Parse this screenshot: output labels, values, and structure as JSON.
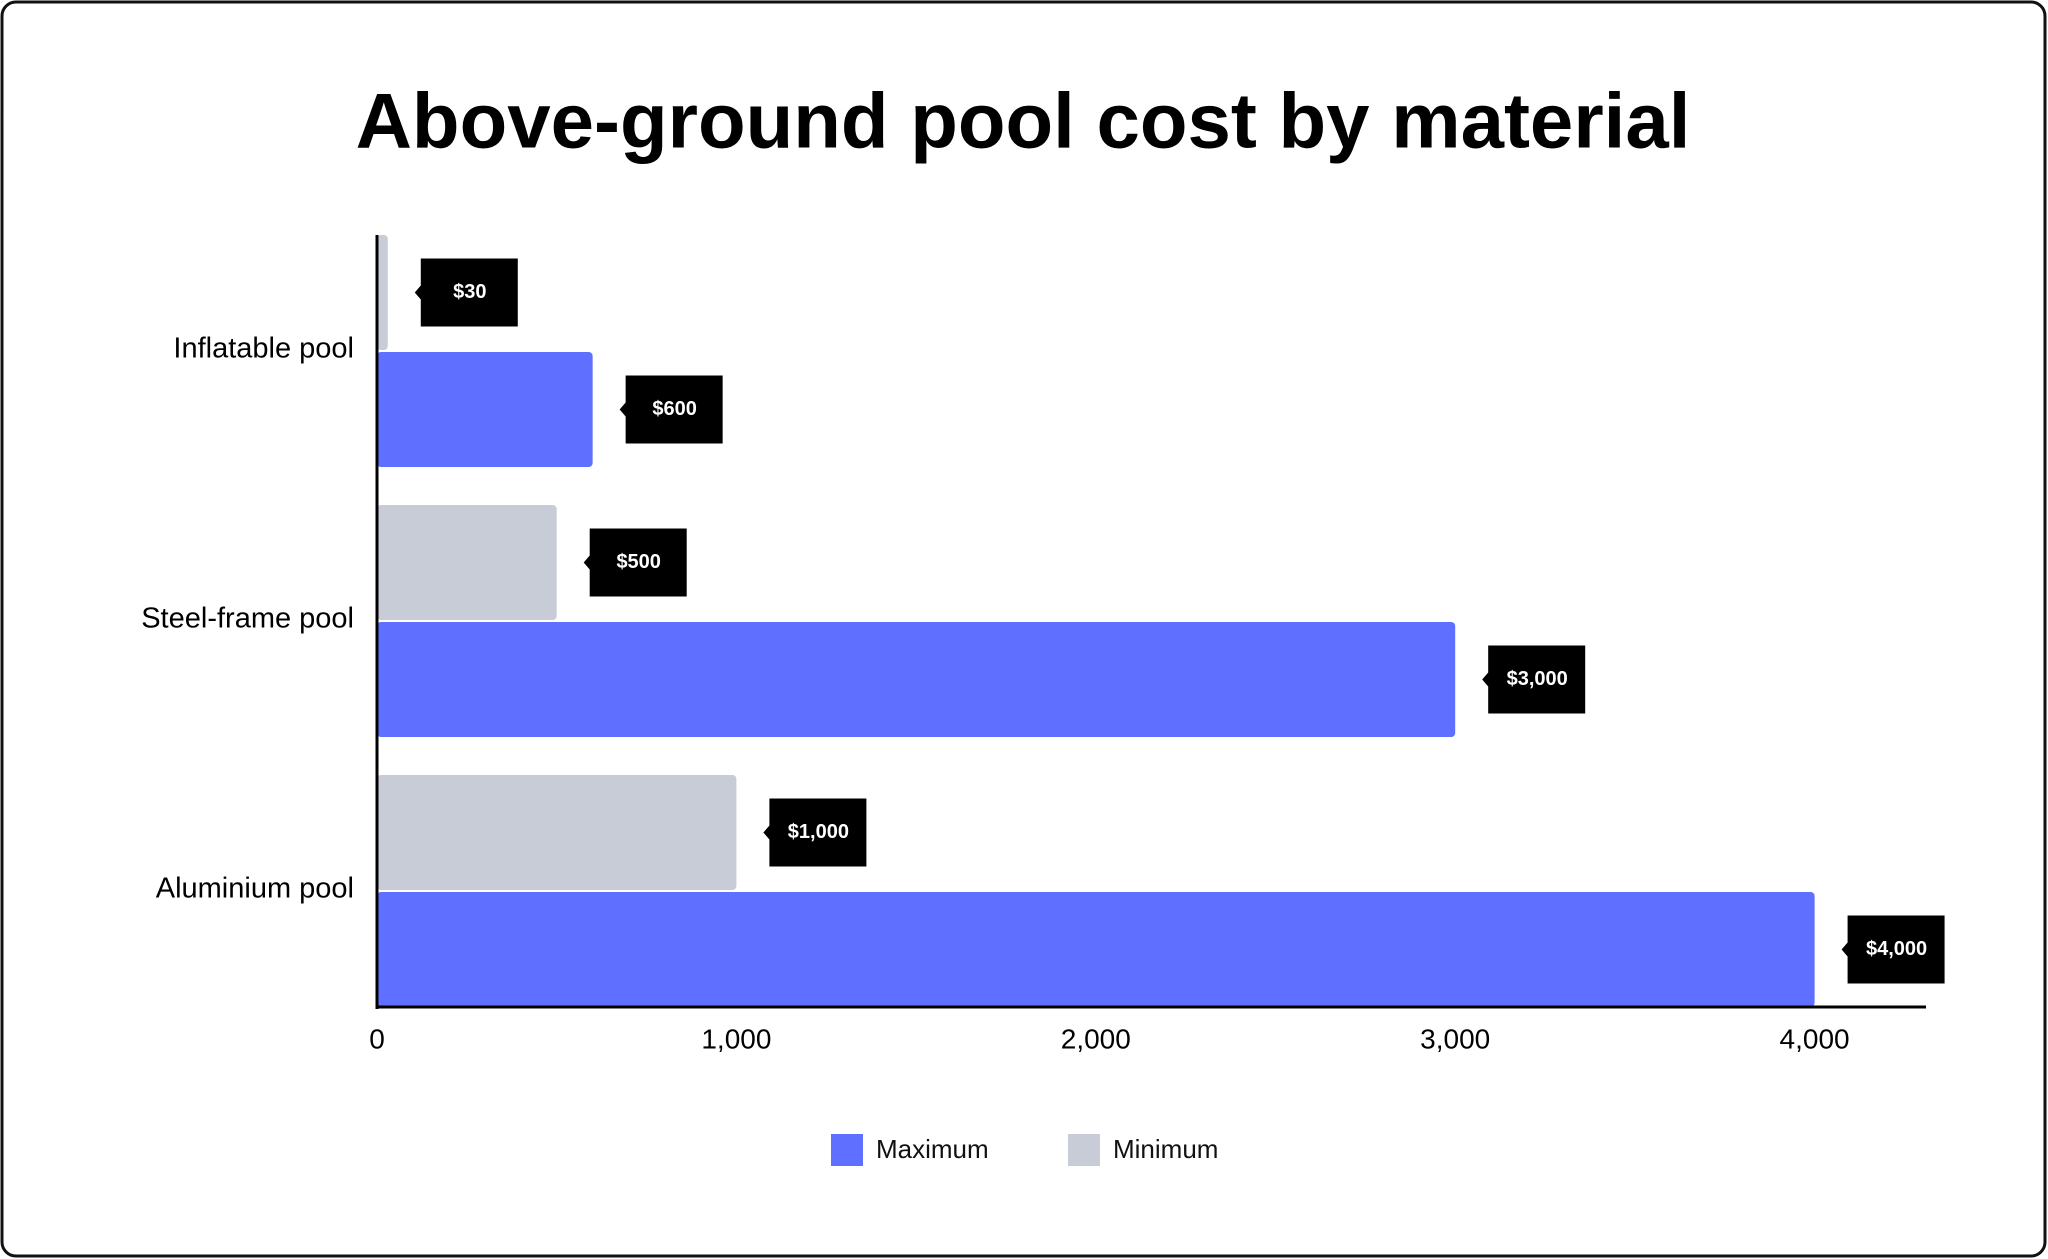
{
  "chart_data": {
    "type": "hbar",
    "title": "Above-ground pool cost by material",
    "categories": [
      "Inflatable pool",
      "Steel-frame pool",
      "Aluminium pool"
    ],
    "series": [
      {
        "name": "Maximum",
        "color": "#5f6fff",
        "values": [
          600,
          3000,
          4000
        ],
        "value_labels": [
          "$600",
          "$3,000",
          "$4,000"
        ]
      },
      {
        "name": "Minimum",
        "color": "#c7ccd6",
        "values": [
          30,
          500,
          1000
        ],
        "value_labels": [
          "$30",
          "$500",
          "$1,000"
        ]
      }
    ],
    "xlim": [
      0,
      4310
    ],
    "xticks": [
      0,
      {
        "value": 1000,
        "label": "1,000"
      },
      {
        "value": 2000,
        "label": "2,000"
      },
      {
        "value": 3000,
        "label": "3,000"
      },
      {
        "value": 4000,
        "label": "4,000"
      }
    ]
  }
}
